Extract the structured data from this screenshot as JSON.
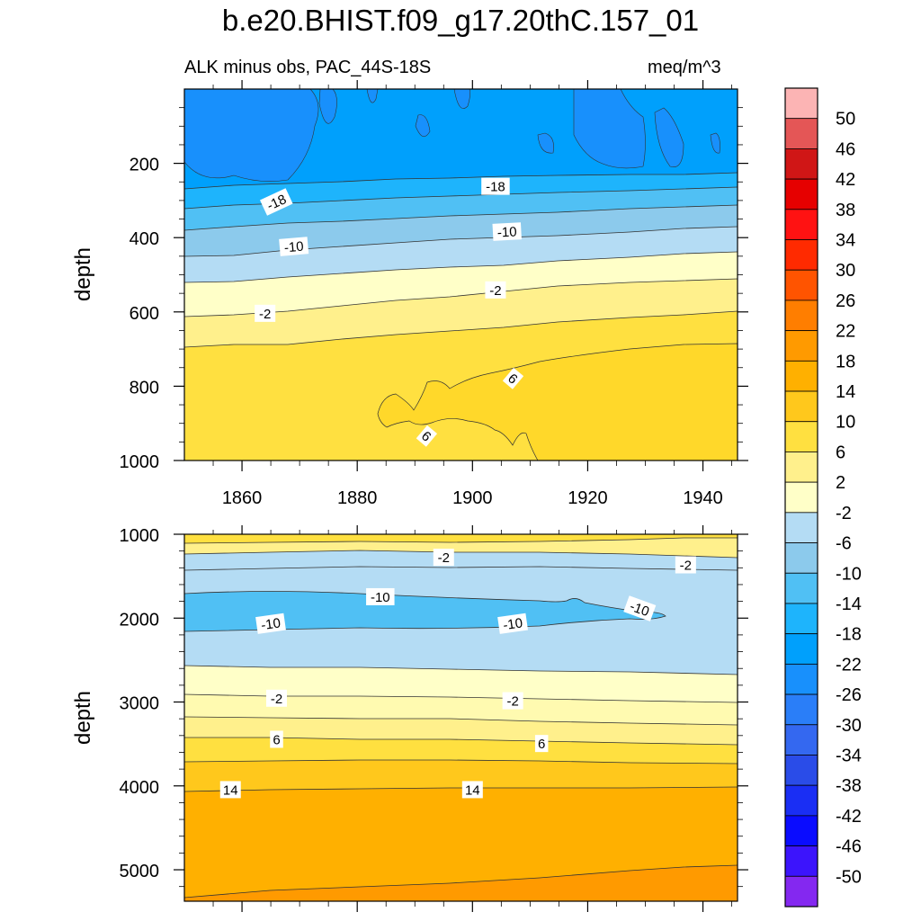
{
  "title": "b.e20.BHIST.f09_g17.20thC.157_01",
  "subtitle_left": "ALK minus obs, PAC_44S-18S",
  "subtitle_right": "meq/m^3",
  "chart_data": [
    {
      "type": "contour",
      "panel": "upper",
      "title": "b.e20.BHIST.f09_g17.20thC.157_01",
      "variable": "ALK minus obs, PAC_44S-18S",
      "units": "meq/m^3",
      "xlabel": "",
      "ylabel": "depth",
      "xlim": [
        1850,
        1946
      ],
      "ylim": [
        1000,
        0
      ],
      "x_ticks": [
        1860,
        1880,
        1900,
        1920,
        1940
      ],
      "y_ticks": [
        200,
        400,
        600,
        800,
        1000
      ],
      "contour_labels": [
        {
          "text": "-18",
          "x": 1866,
          "y": 305,
          "angle": -25
        },
        {
          "text": "-18",
          "x": 1904,
          "y": 263,
          "angle": 0
        },
        {
          "text": "-10",
          "x": 1869,
          "y": 425,
          "angle": -5
        },
        {
          "text": "-10",
          "x": 1906,
          "y": 385,
          "angle": -3
        },
        {
          "text": "-2",
          "x": 1864,
          "y": 605,
          "angle": 0
        },
        {
          "text": "-2",
          "x": 1904,
          "y": 542,
          "angle": 0
        },
        {
          "text": "6",
          "x": 1907,
          "y": 780,
          "angle": 40
        },
        {
          "text": "6",
          "x": 1892,
          "y": 935,
          "angle": 40
        }
      ]
    },
    {
      "type": "contour",
      "panel": "lower",
      "xlabel": "",
      "ylabel": "depth",
      "xlim": [
        1850,
        1946
      ],
      "ylim": [
        5375,
        1000
      ],
      "y_ticks": [
        1000,
        2000,
        3000,
        4000,
        5000
      ],
      "contour_labels": [
        {
          "text": "-2",
          "x": 1895,
          "y": 1280,
          "angle": 0
        },
        {
          "text": "-2",
          "x": 1937,
          "y": 1370,
          "angle": 0
        },
        {
          "text": "-10",
          "x": 1884,
          "y": 1750,
          "angle": 0
        },
        {
          "text": "-10",
          "x": 1929,
          "y": 1890,
          "angle": 20
        },
        {
          "text": "-10",
          "x": 1865,
          "y": 2070,
          "angle": -8
        },
        {
          "text": "-10",
          "x": 1907,
          "y": 2070,
          "angle": -8
        },
        {
          "text": "-2",
          "x": 1866,
          "y": 2960,
          "angle": 0
        },
        {
          "text": "-2",
          "x": 1907,
          "y": 2990,
          "angle": 0
        },
        {
          "text": "6",
          "x": 1866,
          "y": 3450,
          "angle": 0
        },
        {
          "text": "6",
          "x": 1912,
          "y": 3500,
          "angle": 0
        },
        {
          "text": "14",
          "x": 1858,
          "y": 4050,
          "angle": 0
        },
        {
          "text": "14",
          "x": 1900,
          "y": 4050,
          "angle": 0
        }
      ]
    },
    {
      "type": "colorbar",
      "labels": [
        "50",
        "46",
        "42",
        "38",
        "34",
        "30",
        "26",
        "22",
        "18",
        "14",
        "10",
        "6",
        "2",
        "-2",
        "-6",
        "-10",
        "-14",
        "-18",
        "-22",
        "-26",
        "-30",
        "-34",
        "-38",
        "-42",
        "-46",
        "-50"
      ],
      "colors": [
        "#fcb4b4",
        "#e45656",
        "#d01616",
        "#e60000",
        "#ff1212",
        "#ff2a00",
        "#ff5400",
        "#ff7e00",
        "#ff9a00",
        "#ffb000",
        "#ffc81c",
        "#ffe040",
        "#fff08c",
        "#ffffc8",
        "#b4dcf4",
        "#8ccaec",
        "#50c0f4",
        "#1eb4fc",
        "#00a0fc",
        "#1890fc",
        "#2a7ef8",
        "#3468f0",
        "#2a4ce8",
        "#1a2ef4",
        "#0a0cff",
        "#3c14fc",
        "#8428f0"
      ]
    }
  ]
}
